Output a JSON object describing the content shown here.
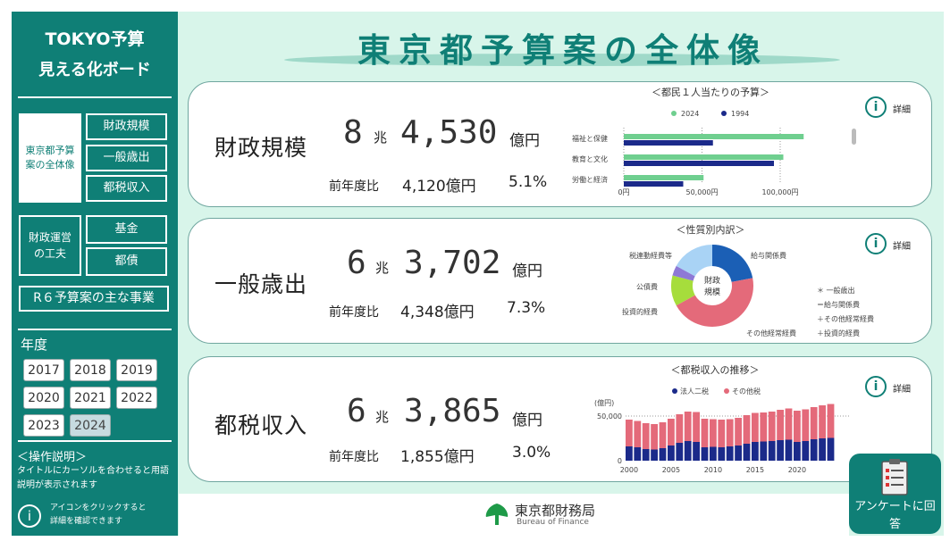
{
  "sidebar": {
    "title1": "TOKYO予算",
    "title2": "見える化ボード",
    "nav_overview": "東京都予算案の全体像",
    "nav_scale": "財政規模",
    "nav_general": "一般歳出",
    "nav_tax": "都税収入",
    "nav_ops": "財政運営の工夫",
    "nav_fund": "基金",
    "nav_bond": "都債",
    "nav_projects": "R６予算案の主な事業",
    "year_label": "年度",
    "years": [
      "2017",
      "2018",
      "2019",
      "2020",
      "2021",
      "2022",
      "2023",
      "2024"
    ],
    "selected_year": "2024",
    "help_title": "＜操作説明＞",
    "help_text": "タイトルにカーソルを合わせると用語説明が表示されます",
    "help_icon_text": "アイコンをクリックすると詳細を確認できます"
  },
  "header": {
    "title": "東京都予算案の全体像"
  },
  "cards": {
    "scale": {
      "title": "財政規模",
      "trillion": "8",
      "chou": "兆",
      "billion": "4,530",
      "oku": "億円",
      "yoy_label": "前年度比",
      "yoy_amount": "4,120億円",
      "yoy_pct": "5.1%",
      "detail": "詳細"
    },
    "general": {
      "title": "一般歳出",
      "trillion": "6",
      "chou": "兆",
      "billion": "3,702",
      "oku": "億円",
      "yoy_label": "前年度比",
      "yoy_amount": "4,348億円",
      "yoy_pct": "7.3%",
      "detail": "詳細"
    },
    "tax": {
      "title": "都税収入",
      "trillion": "6",
      "chou": "兆",
      "billion": "3,865",
      "oku": "億円",
      "yoy_label": "前年度比",
      "yoy_amount": "1,855億円",
      "yoy_pct": "3.0%",
      "detail": "詳細"
    }
  },
  "chart_data": [
    {
      "type": "bar",
      "title": "＜都民１人当たりの予算＞",
      "categories": [
        "福祉と保健",
        "教育と文化",
        "労働と経済"
      ],
      "series": [
        {
          "name": "2024",
          "values": [
            115000,
            102000,
            51000
          ],
          "color": "#6fcf8f"
        },
        {
          "name": "1994",
          "values": [
            57000,
            96000,
            38000
          ],
          "color": "#1b2a8a"
        }
      ],
      "xticks": [
        "0円",
        "50,000円",
        "100,000円"
      ],
      "xlim": [
        0,
        120000
      ]
    },
    {
      "type": "pie",
      "title": "＜性質別内訳＞",
      "center_label": "財政規模",
      "slices": [
        {
          "name": "給与関係費",
          "value": 22,
          "color": "#1b5fb5"
        },
        {
          "name": "その他経常経費",
          "value": 45,
          "color": "#e46a7a"
        },
        {
          "name": "投資的経費",
          "value": 12,
          "color": "#a6dd3c"
        },
        {
          "name": "公債費",
          "value": 4,
          "color": "#8e79d6"
        },
        {
          "name": "税連動経費等",
          "value": 17,
          "color": "#a9d3f5"
        }
      ],
      "note": [
        "＊ 一般歳出",
        "＝給与関係費",
        "＋その他経常経費",
        "＋投資的経費"
      ]
    },
    {
      "type": "bar",
      "title": "＜都税収入の推移＞",
      "ylabel": "(億円)",
      "x": [
        2000,
        2001,
        2002,
        2003,
        2004,
        2005,
        2006,
        2007,
        2008,
        2009,
        2010,
        2011,
        2012,
        2013,
        2014,
        2015,
        2016,
        2017,
        2018,
        2019,
        2020,
        2021,
        2022,
        2023,
        2024
      ],
      "series": [
        {
          "name": "法人二税",
          "values": [
            16000,
            15000,
            13000,
            12500,
            14000,
            17000,
            20000,
            22000,
            21000,
            15000,
            15500,
            15000,
            16000,
            17000,
            19000,
            21000,
            21500,
            22000,
            23000,
            23500,
            21000,
            22000,
            24000,
            25000,
            25500
          ],
          "color": "#1b2a8a"
        },
        {
          "name": "その他税",
          "values": [
            30000,
            29500,
            29000,
            28500,
            29000,
            30000,
            32000,
            33000,
            33500,
            32000,
            31000,
            31000,
            30500,
            31000,
            32000,
            32500,
            32500,
            33000,
            34000,
            35000,
            35000,
            35500,
            36000,
            37000,
            38000
          ],
          "color": "#e46a7a"
        }
      ],
      "yticks": [
        "0",
        "50,000"
      ],
      "xticks": [
        "2000",
        "2005",
        "2010",
        "2015",
        "2020"
      ],
      "ylim": [
        0,
        70000
      ]
    }
  ],
  "footer": {
    "logo_text": "東京都財務局",
    "logo_sub": "Bureau of Finance",
    "survey": "アンケートに回答"
  }
}
